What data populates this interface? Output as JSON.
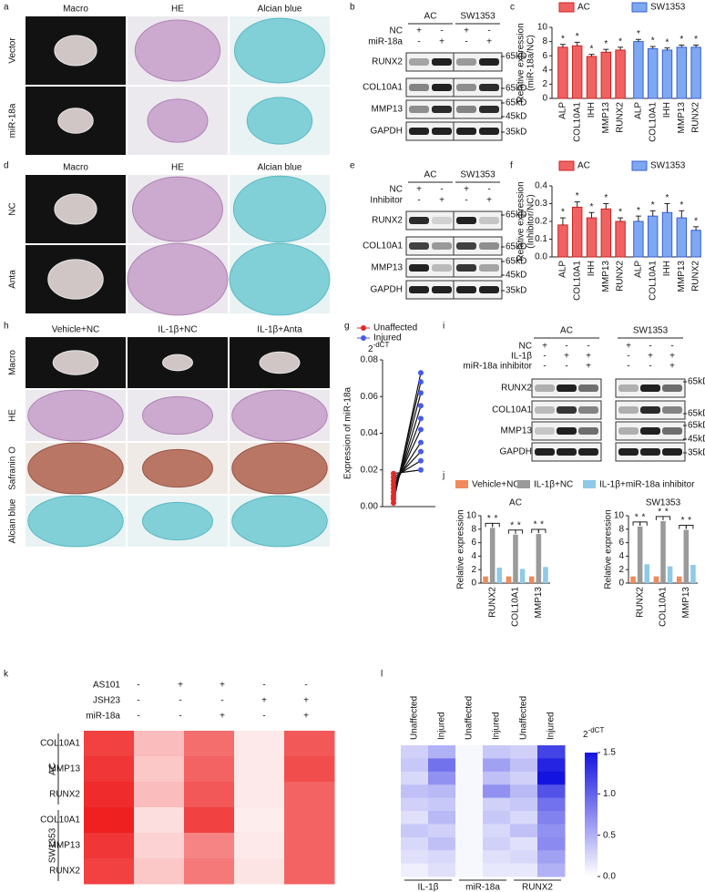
{
  "figure": {
    "panel_letters": [
      "a",
      "b",
      "c",
      "d",
      "e",
      "f",
      "h",
      "g",
      "i",
      "j",
      "k",
      "l"
    ],
    "a": {
      "columns": [
        "Macro",
        "HE",
        "Alcian blue"
      ],
      "rows": [
        "Vector",
        "miR-18a"
      ]
    },
    "b": {
      "groups": [
        "AC",
        "SW1353"
      ],
      "conditions": [
        {
          "name": "NC",
          "signs": [
            "+",
            "-",
            "+",
            "-"
          ]
        },
        {
          "name": "miR-18a",
          "signs": [
            "-",
            "+",
            "-",
            "+"
          ]
        }
      ],
      "proteins": [
        "RUNX2",
        "COL10A1",
        "MMP13",
        "GAPDH"
      ],
      "markers": [
        "65kD",
        "65kD",
        "65kD",
        "45kD",
        "35kD"
      ]
    },
    "d": {
      "columns": [
        "Macro",
        "HE",
        "Alcian blue"
      ],
      "rows": [
        "NC",
        "Anta"
      ]
    },
    "e": {
      "groups": [
        "AC",
        "SW1353"
      ],
      "conditions": [
        {
          "name": "NC",
          "signs": [
            "+",
            "-",
            "+",
            "-"
          ]
        },
        {
          "name": "Inhibitor",
          "signs": [
            "-",
            "+",
            "-",
            "+"
          ]
        }
      ],
      "proteins": [
        "RUNX2",
        "COL10A1",
        "MMP13",
        "GAPDH"
      ],
      "markers": [
        "65kD",
        "65kD",
        "65kD",
        "45kD",
        "35kD"
      ]
    },
    "h": {
      "columns": [
        "Vehicle+NC",
        "IL-1β+NC",
        "IL-1β+Anta"
      ],
      "rows": [
        "Macro",
        "HE",
        "Safranin O",
        "Alcian blue"
      ]
    },
    "i": {
      "groups": [
        "AC",
        "SW1353"
      ],
      "conditions": [
        {
          "name": "NC",
          "signs": [
            "+",
            "-",
            "-",
            "+",
            "-",
            "-"
          ]
        },
        {
          "name": "IL-1β",
          "signs": [
            "-",
            "+",
            "+",
            "-",
            "+",
            "+"
          ]
        },
        {
          "name": "miR-18a inhibitor",
          "signs": [
            "-",
            "-",
            "+",
            "-",
            "-",
            "+"
          ]
        }
      ],
      "proteins": [
        "RUNX2",
        "COL10A1",
        "MMP13",
        "GAPDH"
      ],
      "markers": [
        "65kD",
        "65kD",
        "65kD",
        "45kD",
        "35kD"
      ]
    }
  },
  "chart_data": [
    {
      "type": "bar",
      "categories": [
        "ALP",
        "COL10A1",
        "IHH",
        "MMP13",
        "RUNX2"
      ],
      "series": [
        {
          "name": "AC",
          "color": "#f06262",
          "values": [
            7.2,
            7.4,
            5.9,
            6.5,
            6.8
          ],
          "errors": [
            0.4,
            0.5,
            0.3,
            0.4,
            0.4
          ]
        },
        {
          "name": "SW1353",
          "color": "#7ea8f2",
          "values": [
            8.0,
            7.0,
            6.8,
            7.2,
            7.2
          ],
          "errors": [
            0.3,
            0.3,
            0.3,
            0.3,
            0.3
          ]
        }
      ],
      "ylabel": [
        "Relative expression",
        "(miR-18a/NC)"
      ],
      "significance": "*",
      "ylim": [
        0,
        10
      ],
      "yticks": [
        0,
        2,
        4,
        6,
        8,
        10
      ]
    },
    {
      "type": "bar",
      "categories": [
        "ALP",
        "COL10A1",
        "IHH",
        "MMP13",
        "RUNX2"
      ],
      "series": [
        {
          "name": "AC",
          "color": "#f06262",
          "values": [
            0.18,
            0.28,
            0.22,
            0.27,
            0.2
          ],
          "errors": [
            0.04,
            0.03,
            0.03,
            0.03,
            0.02
          ]
        },
        {
          "name": "SW1353",
          "color": "#7ea8f2",
          "values": [
            0.2,
            0.23,
            0.25,
            0.22,
            0.15
          ],
          "errors": [
            0.03,
            0.03,
            0.05,
            0.04,
            0.02
          ]
        }
      ],
      "ylabel": [
        "Relative expression",
        "(Inhibitor/NC)"
      ],
      "significance": "*",
      "ylim": [
        0,
        0.4
      ],
      "yticks": [
        {
          "value": 0,
          "label": "0.0"
        },
        0.1,
        0.2,
        0.3,
        0.4
      ]
    },
    {
      "type": "paired",
      "ylabel": "Expression of miR-18a",
      "unit": {
        "base": "2",
        "exponent": "-dCT"
      },
      "series": [
        {
          "name": "Unaffected",
          "color": "#e02a2a",
          "values": [
            0.002,
            0.004,
            0.005,
            0.006,
            0.008,
            0.01,
            0.012,
            0.014,
            0.016,
            0.018
          ]
        },
        {
          "name": "Injured",
          "color": "#4a5ae8",
          "values": [
            0.073,
            0.068,
            0.062,
            0.055,
            0.048,
            0.042,
            0.035,
            0.03,
            0.025,
            0.02
          ]
        }
      ],
      "ylim": [
        0,
        0.08
      ],
      "yticks": [
        {
          "value": 0,
          "label": "0.00"
        },
        0.02,
        0.04,
        0.06,
        0.08
      ]
    },
    {
      "type": "faceted-bar",
      "ylabel": "Relative expression",
      "significance": "*",
      "series": [
        {
          "name": "Vehicle+NC",
          "color": "#f08a5c"
        },
        {
          "name": "IL-1β+NC",
          "color": "#9a9a9a"
        },
        {
          "name": "IL-1β+miR-18a inhibitor",
          "color": "#8ecae8"
        }
      ],
      "facets": [
        {
          "title": "AC",
          "categories": [
            "RUNX2",
            "COL10A1",
            "MMP13"
          ],
          "series_values": [
            [
              1,
              1,
              1
            ],
            [
              8.2,
              7.2,
              7.3
            ],
            [
              2.3,
              2.1,
              2.4
            ]
          ]
        },
        {
          "title": "SW1353",
          "categories": [
            "RUNX2",
            "COL10A1",
            "MMP13"
          ],
          "series_values": [
            [
              1,
              1,
              1
            ],
            [
              8.4,
              9.2,
              7.9
            ],
            [
              2.8,
              2.5,
              2.7
            ]
          ]
        }
      ],
      "ylim": [
        0,
        10
      ],
      "yticks": [
        0,
        2,
        4,
        6,
        8,
        10
      ]
    },
    {
      "type": "heatmap",
      "color": "#ee2020",
      "conditions": [
        {
          "name": "AS101",
          "signs": [
            "-",
            "+",
            "+",
            "-",
            "-"
          ]
        },
        {
          "name": "JSH23",
          "signs": [
            "-",
            "-",
            "-",
            "+",
            "+"
          ]
        },
        {
          "name": "miR-18a",
          "signs": [
            "-",
            "-",
            "+",
            "-",
            "+"
          ]
        }
      ],
      "row_groups": [
        {
          "name": "AC",
          "rows": [
            "COL10A1",
            "MMP13",
            "RUNX2"
          ]
        },
        {
          "name": "SW1353",
          "rows": [
            "COL10A1",
            "MMP13",
            "RUNX2"
          ]
        }
      ],
      "values": [
        [
          0.85,
          0.3,
          0.65,
          0.1,
          0.75
        ],
        [
          0.9,
          0.25,
          0.7,
          0.1,
          0.8
        ],
        [
          0.95,
          0.3,
          0.75,
          0.1,
          0.7
        ],
        [
          1.0,
          0.15,
          0.85,
          0.08,
          0.7
        ],
        [
          0.9,
          0.2,
          0.55,
          0.1,
          0.7
        ],
        [
          0.85,
          0.25,
          0.6,
          0.12,
          0.7
        ]
      ]
    },
    {
      "type": "heatmap",
      "color": "#1414e0",
      "columns": [
        "Unaffected",
        "Injured",
        "Unaffected",
        "Injured",
        "Unaffected",
        "Injured"
      ],
      "groups": [
        "IL-1β",
        "miR-18a",
        "RUNX2"
      ],
      "unit": {
        "base": "2",
        "exponent": "-dCT"
      },
      "clim": [
        0,
        1.5
      ],
      "cticks": [
        {
          "value": 0,
          "label": "0.0"
        },
        0.5,
        {
          "value": 1,
          "label": "1.0"
        },
        1.5
      ],
      "values": [
        [
          0.3,
          0.5,
          0.05,
          0.35,
          0.3,
          1.2
        ],
        [
          0.35,
          0.9,
          0.05,
          0.6,
          0.4,
          1.4
        ],
        [
          0.25,
          0.7,
          0.05,
          0.4,
          0.3,
          1.5
        ],
        [
          0.4,
          0.45,
          0.05,
          0.7,
          0.45,
          1.1
        ],
        [
          0.3,
          0.35,
          0.05,
          0.3,
          0.35,
          0.9
        ],
        [
          0.2,
          0.45,
          0.05,
          0.35,
          0.25,
          0.8
        ],
        [
          0.35,
          0.3,
          0.05,
          0.25,
          0.4,
          0.7
        ],
        [
          0.25,
          0.4,
          0.05,
          0.3,
          0.2,
          0.75
        ],
        [
          0.2,
          0.25,
          0.05,
          0.2,
          0.25,
          0.6
        ],
        [
          0.1,
          0.2,
          0.05,
          0.15,
          0.15,
          0.5
        ]
      ]
    }
  ]
}
